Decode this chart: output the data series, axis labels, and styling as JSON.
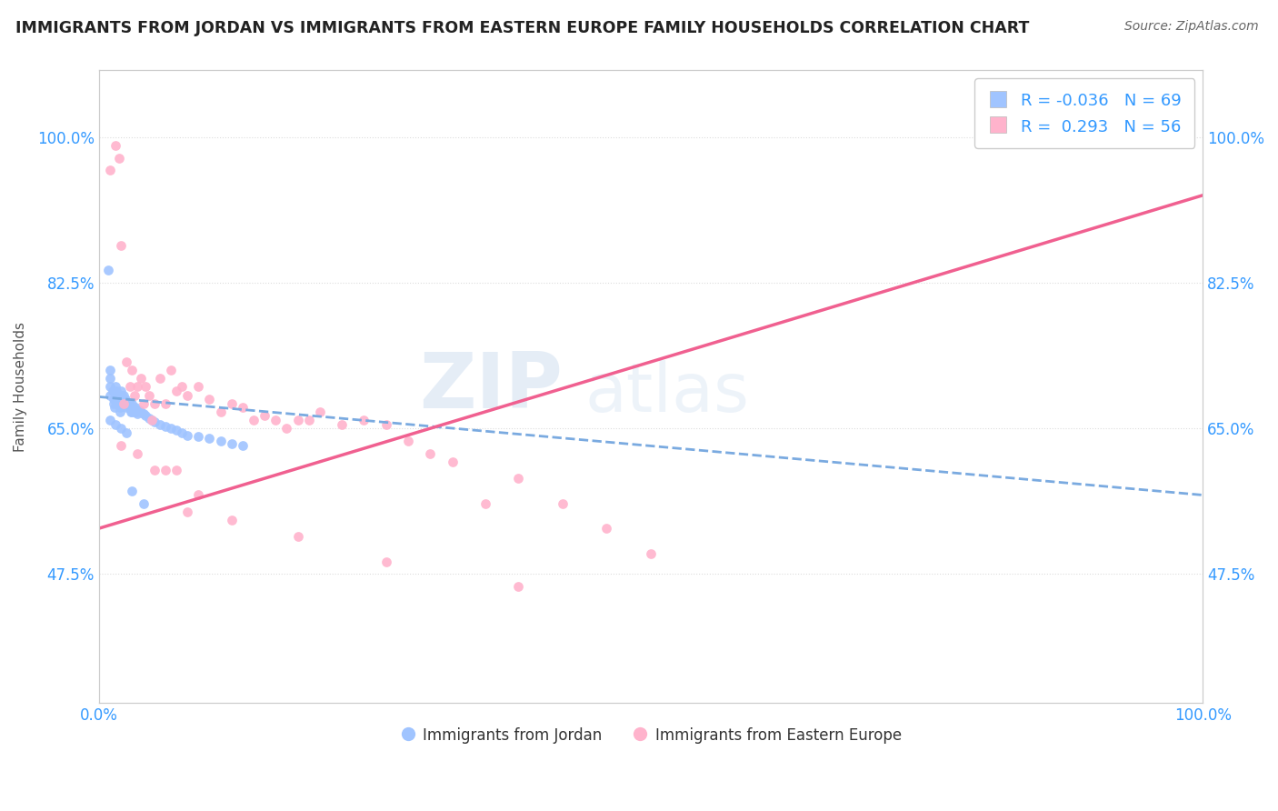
{
  "title": "IMMIGRANTS FROM JORDAN VS IMMIGRANTS FROM EASTERN EUROPE FAMILY HOUSEHOLDS CORRELATION CHART",
  "source_text": "Source: ZipAtlas.com",
  "ylabel": "Family Households",
  "xlim": [
    0.0,
    1.0
  ],
  "ylim": [
    0.32,
    1.08
  ],
  "ytick_values": [
    0.475,
    0.65,
    0.825,
    1.0
  ],
  "ytick_labels": [
    "47.5%",
    "65.0%",
    "82.5%",
    "100.0%"
  ],
  "xtick_values": [
    0.0,
    1.0
  ],
  "xtick_labels": [
    "0.0%",
    "100.0%"
  ],
  "color_jordan": "#a0c4ff",
  "color_eastern": "#ffb3cc",
  "line_color_jordan": "#7aaae0",
  "line_color_eastern": "#f06090",
  "watermark_zip": "ZIP",
  "watermark_atlas": "atlas",
  "jordan_scatter_x": [
    0.008,
    0.01,
    0.01,
    0.01,
    0.01,
    0.012,
    0.013,
    0.013,
    0.014,
    0.015,
    0.015,
    0.016,
    0.016,
    0.017,
    0.018,
    0.018,
    0.018,
    0.019,
    0.019,
    0.02,
    0.02,
    0.02,
    0.02,
    0.021,
    0.021,
    0.022,
    0.022,
    0.023,
    0.024,
    0.024,
    0.025,
    0.025,
    0.026,
    0.027,
    0.028,
    0.028,
    0.029,
    0.03,
    0.03,
    0.03,
    0.031,
    0.032,
    0.033,
    0.034,
    0.035,
    0.036,
    0.038,
    0.04,
    0.042,
    0.045,
    0.048,
    0.05,
    0.055,
    0.06,
    0.065,
    0.07,
    0.075,
    0.08,
    0.09,
    0.1,
    0.11,
    0.12,
    0.13,
    0.01,
    0.015,
    0.02,
    0.025,
    0.03,
    0.04
  ],
  "jordan_scatter_y": [
    0.84,
    0.72,
    0.71,
    0.7,
    0.69,
    0.695,
    0.685,
    0.68,
    0.675,
    0.7,
    0.69,
    0.695,
    0.685,
    0.68,
    0.69,
    0.685,
    0.68,
    0.675,
    0.67,
    0.695,
    0.69,
    0.685,
    0.68,
    0.69,
    0.685,
    0.69,
    0.685,
    0.68,
    0.685,
    0.68,
    0.68,
    0.675,
    0.68,
    0.675,
    0.68,
    0.675,
    0.67,
    0.68,
    0.675,
    0.67,
    0.675,
    0.67,
    0.675,
    0.67,
    0.668,
    0.672,
    0.67,
    0.668,
    0.665,
    0.662,
    0.66,
    0.658,
    0.655,
    0.652,
    0.65,
    0.648,
    0.645,
    0.642,
    0.64,
    0.638,
    0.635,
    0.632,
    0.63,
    0.66,
    0.655,
    0.65,
    0.645,
    0.575,
    0.56
  ],
  "eastern_scatter_x": [
    0.01,
    0.015,
    0.018,
    0.02,
    0.022,
    0.025,
    0.028,
    0.03,
    0.032,
    0.035,
    0.038,
    0.04,
    0.042,
    0.045,
    0.048,
    0.05,
    0.055,
    0.06,
    0.065,
    0.07,
    0.075,
    0.08,
    0.09,
    0.1,
    0.11,
    0.12,
    0.13,
    0.14,
    0.15,
    0.16,
    0.17,
    0.18,
    0.19,
    0.2,
    0.22,
    0.24,
    0.26,
    0.28,
    0.3,
    0.32,
    0.35,
    0.38,
    0.42,
    0.46,
    0.5,
    0.02,
    0.035,
    0.05,
    0.06,
    0.07,
    0.08,
    0.09,
    0.12,
    0.18,
    0.26,
    0.38
  ],
  "eastern_scatter_y": [
    0.96,
    0.99,
    0.975,
    0.87,
    0.68,
    0.73,
    0.7,
    0.72,
    0.69,
    0.7,
    0.71,
    0.68,
    0.7,
    0.69,
    0.66,
    0.68,
    0.71,
    0.68,
    0.72,
    0.695,
    0.7,
    0.69,
    0.7,
    0.685,
    0.67,
    0.68,
    0.675,
    0.66,
    0.665,
    0.66,
    0.65,
    0.66,
    0.66,
    0.67,
    0.655,
    0.66,
    0.655,
    0.635,
    0.62,
    0.61,
    0.56,
    0.59,
    0.56,
    0.53,
    0.5,
    0.63,
    0.62,
    0.6,
    0.6,
    0.6,
    0.55,
    0.57,
    0.54,
    0.52,
    0.49,
    0.46
  ],
  "jordan_line_x": [
    0.0,
    1.0
  ],
  "jordan_line_y": [
    0.688,
    0.57
  ],
  "eastern_line_x": [
    0.0,
    1.0
  ],
  "eastern_line_y": [
    0.53,
    0.93
  ],
  "background_color": "#ffffff",
  "grid_color": "#dddddd"
}
